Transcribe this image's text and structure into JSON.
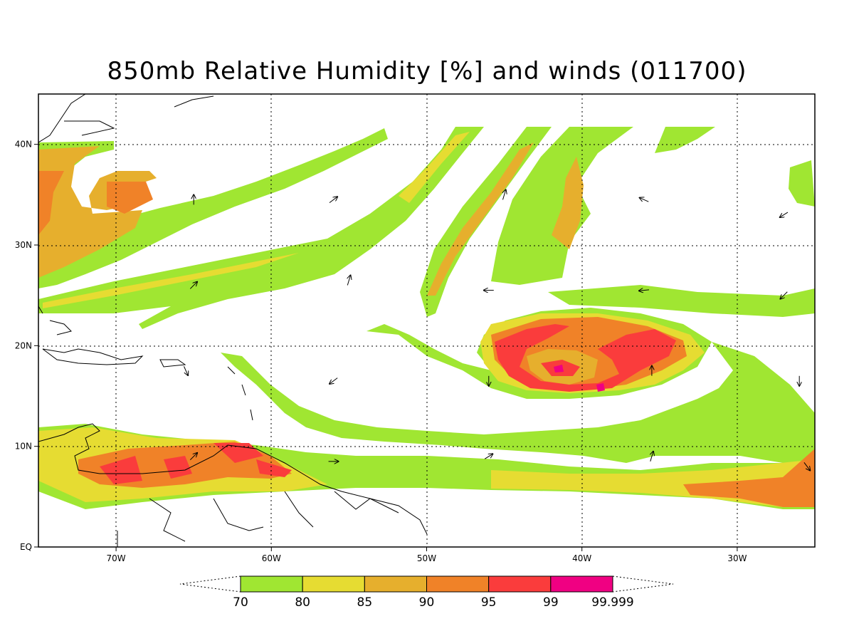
{
  "title": "850mb Relative Humidity [%] and winds (011700)",
  "map": {
    "lon_range": [
      -75,
      -25
    ],
    "lat_range": [
      0,
      45
    ],
    "lon_ticks": [
      {
        "value": -70,
        "label": "70W"
      },
      {
        "value": -60,
        "label": "60W"
      },
      {
        "value": -50,
        "label": "50W"
      },
      {
        "value": -40,
        "label": "40W"
      },
      {
        "value": -30,
        "label": "30W"
      }
    ],
    "lat_ticks": [
      {
        "value": 0,
        "label": "EQ"
      },
      {
        "value": 10,
        "label": "10N"
      },
      {
        "value": 20,
        "label": "20N"
      },
      {
        "value": 30,
        "label": "30N"
      },
      {
        "value": 40,
        "label": "40N"
      }
    ],
    "gridlines": "dotted"
  },
  "colorbar": {
    "bins": [
      {
        "from": 70,
        "to": 80,
        "color": "#a0e632"
      },
      {
        "from": 80,
        "to": 85,
        "color": "#e6dc32"
      },
      {
        "from": 85,
        "to": 90,
        "color": "#e6af2d"
      },
      {
        "from": 90,
        "to": 95,
        "color": "#f08228"
      },
      {
        "from": 95,
        "to": 99,
        "color": "#fa3c3c"
      },
      {
        "from": 99,
        "to": 99.999,
        "color": "#f00082"
      }
    ],
    "labels": [
      "70",
      "80",
      "85",
      "90",
      "95",
      "99",
      "99.999"
    ],
    "extend": "both"
  },
  "cyclone_center": {
    "lon": -40.5,
    "lat": 17.5
  },
  "wind_vectors": [
    {
      "lon": -65,
      "lat": 34.5,
      "u": 0,
      "v": 1
    },
    {
      "lon": -56,
      "lat": 34.5,
      "u": 0.8,
      "v": 0.6
    },
    {
      "lon": -45,
      "lat": 35,
      "u": 0.3,
      "v": 1
    },
    {
      "lon": -36,
      "lat": 34.5,
      "u": -0.9,
      "v": 0.4
    },
    {
      "lon": -27,
      "lat": 33,
      "u": -0.8,
      "v": -0.5
    },
    {
      "lon": -65,
      "lat": 26,
      "u": 0.7,
      "v": 0.7
    },
    {
      "lon": -55,
      "lat": 26.5,
      "u": 0.3,
      "v": 1
    },
    {
      "lon": -46,
      "lat": 25.5,
      "u": -1,
      "v": 0
    },
    {
      "lon": -36,
      "lat": 25.5,
      "u": -1,
      "v": -0.1
    },
    {
      "lon": -27,
      "lat": 25,
      "u": -0.7,
      "v": -0.7
    },
    {
      "lon": -65.5,
      "lat": 17.5,
      "u": 0.4,
      "v": -0.9
    },
    {
      "lon": -56,
      "lat": 16.5,
      "u": -0.8,
      "v": -0.6
    },
    {
      "lon": -46,
      "lat": 16.5,
      "u": 0,
      "v": -1
    },
    {
      "lon": -35.5,
      "lat": 17.5,
      "u": 0,
      "v": 1
    },
    {
      "lon": -26,
      "lat": 16.5,
      "u": 0,
      "v": -1
    },
    {
      "lon": -65,
      "lat": 9,
      "u": 0.7,
      "v": 0.7
    },
    {
      "lon": -56,
      "lat": 8.5,
      "u": 1,
      "v": 0
    },
    {
      "lon": -46,
      "lat": 9,
      "u": 0.8,
      "v": 0.5
    },
    {
      "lon": -35.5,
      "lat": 9,
      "u": 0.3,
      "v": 1
    },
    {
      "lon": -25.5,
      "lat": 8,
      "u": 0.6,
      "v": -0.8
    }
  ]
}
